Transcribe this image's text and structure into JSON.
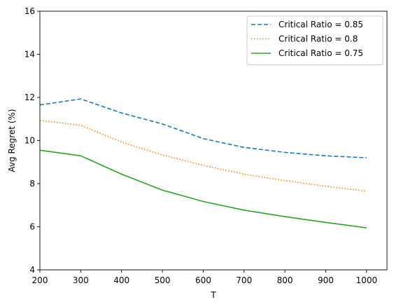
{
  "chart_data": {
    "type": "line",
    "title": "",
    "xlabel": "T",
    "ylabel": "Avg Regret (%)",
    "xlim": [
      200,
      1050
    ],
    "ylim": [
      4,
      16
    ],
    "xticks": [
      200,
      300,
      400,
      500,
      600,
      700,
      800,
      900,
      1000
    ],
    "yticks": [
      4,
      6,
      8,
      10,
      12,
      14,
      16
    ],
    "grid": false,
    "legend_position": "top-right",
    "x": [
      200,
      300,
      400,
      500,
      600,
      700,
      800,
      900,
      1000
    ],
    "series": [
      {
        "name": "Critical Ratio = 0.85",
        "color": "#1f77b4",
        "style": "dashed",
        "values": [
          11.65,
          11.93,
          11.28,
          10.77,
          10.09,
          9.68,
          9.45,
          9.29,
          9.2
        ]
      },
      {
        "name": "Critical Ratio = 0.8",
        "color": "#ff7f0e",
        "style": "dotted",
        "values": [
          10.93,
          10.71,
          9.93,
          9.33,
          8.85,
          8.44,
          8.14,
          7.88,
          7.65
        ]
      },
      {
        "name": "Critical Ratio = 0.75",
        "color": "#2ca02c",
        "style": "solid",
        "values": [
          9.55,
          9.29,
          8.44,
          7.7,
          7.17,
          6.77,
          6.47,
          6.2,
          5.95
        ]
      }
    ]
  }
}
